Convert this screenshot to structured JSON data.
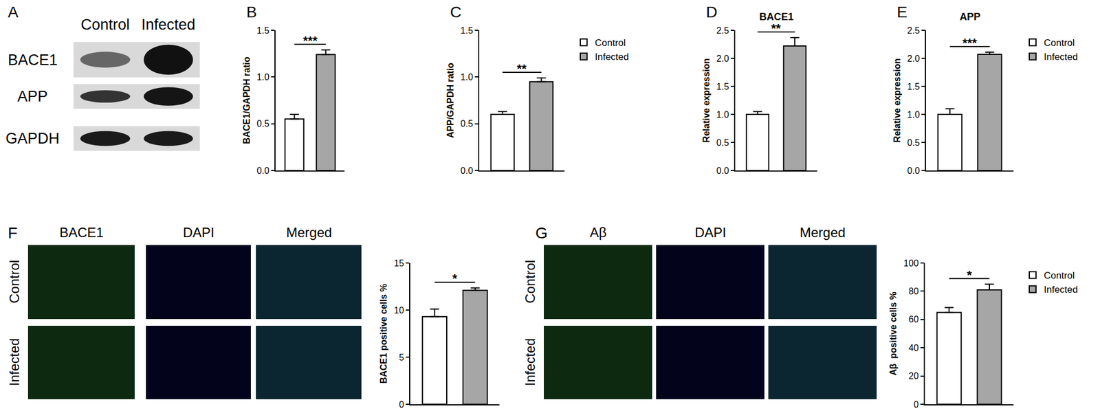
{
  "chart_data": [
    {
      "type": "bar",
      "panel": "B",
      "ylabel": "BACE1/GAPDH ratio",
      "categories": [
        null,
        null
      ],
      "series": [
        {
          "name": "Control",
          "color": "#ffffff",
          "values": [
            0.55,
            null
          ],
          "error": [
            0.05,
            null
          ]
        },
        {
          "name": "Infected",
          "color": "#a6a6a6",
          "values": [
            null,
            1.24
          ],
          "error": [
            null,
            0.05
          ]
        }
      ],
      "ylim": [
        0,
        1.5
      ],
      "yticks": [
        {
          "value": 0,
          "label": "0.0"
        },
        {
          "value": 0.5,
          "label": "0.5"
        },
        {
          "value": 1,
          "label": "1.0"
        },
        {
          "value": 1.5,
          "label": "1.5"
        }
      ],
      "significance": "***",
      "grid": false,
      "tick_labels": "y"
    },
    {
      "type": "bar",
      "panel": "C",
      "ylabel": "APP/GAPDH ratio",
      "categories": [
        null,
        null
      ],
      "series": [
        {
          "name": "Control",
          "color": "#ffffff",
          "values": [
            0.6,
            null
          ],
          "error": [
            0.03,
            null
          ]
        },
        {
          "name": "Infected",
          "color": "#a6a6a6",
          "values": [
            null,
            0.95
          ],
          "error": [
            null,
            0.04
          ]
        }
      ],
      "ylim": [
        0,
        1.5
      ],
      "yticks": [
        {
          "value": 0,
          "label": "0.0"
        },
        {
          "value": 0.5,
          "label": "0.5"
        },
        {
          "value": 1,
          "label": "1.0"
        },
        {
          "value": 1.5,
          "label": "1.5"
        }
      ],
      "significance": "**",
      "grid": false,
      "tick_labels": "y",
      "legend": "upper right"
    },
    {
      "type": "bar",
      "panel": "D",
      "title": "BACE1",
      "ylabel": "Relative expression",
      "categories": [
        null,
        null
      ],
      "series": [
        {
          "name": "Control",
          "color": "#ffffff",
          "values": [
            1.0,
            null
          ],
          "error": [
            0.05,
            null
          ]
        },
        {
          "name": "Infected",
          "color": "#a6a6a6",
          "values": [
            null,
            2.22
          ],
          "error": [
            null,
            0.15
          ]
        }
      ],
      "ylim": [
        0,
        2.5
      ],
      "yticks": [
        {
          "value": 0,
          "label": "0.0"
        },
        {
          "value": 0.5,
          "label": "0.5"
        },
        {
          "value": 1,
          "label": "1.0"
        },
        {
          "value": 1.5,
          "label": "1.5"
        },
        {
          "value": 2,
          "label": "2.0"
        },
        {
          "value": 2.5,
          "label": "2.5"
        }
      ],
      "significance": "**",
      "grid": false,
      "tick_labels": "y"
    },
    {
      "type": "bar",
      "panel": "E",
      "title": "APP",
      "ylabel": "Relative expression",
      "categories": [
        null,
        null
      ],
      "series": [
        {
          "name": "Control",
          "color": "#ffffff",
          "values": [
            1.0,
            null
          ],
          "error": [
            0.1,
            null
          ]
        },
        {
          "name": "Infected",
          "color": "#a6a6a6",
          "values": [
            null,
            2.07
          ],
          "error": [
            null,
            0.04
          ]
        }
      ],
      "ylim": [
        0,
        2.5
      ],
      "yticks": [
        {
          "value": 0,
          "label": "0.0"
        },
        {
          "value": 0.5,
          "label": "0.5"
        },
        {
          "value": 1,
          "label": "1.0"
        },
        {
          "value": 1.5,
          "label": "1.5"
        },
        {
          "value": 2,
          "label": "2.0"
        },
        {
          "value": 2.5,
          "label": "2.5"
        }
      ],
      "significance": "***",
      "grid": false,
      "tick_labels": "y",
      "legend": "upper right"
    },
    {
      "type": "bar",
      "ylabel": "BACE1 positive cells %",
      "categories": [
        null,
        null
      ],
      "series": [
        {
          "name": "Control",
          "color": "#ffffff",
          "values": [
            9.3,
            null
          ],
          "error": [
            0.8,
            null
          ]
        },
        {
          "name": "Infected",
          "color": "#a6a6a6",
          "values": [
            null,
            12.1
          ],
          "error": [
            null,
            0.25
          ]
        }
      ],
      "ylim": [
        0,
        15
      ],
      "yticks": [
        0,
        5,
        10,
        15
      ],
      "significance": "*",
      "grid": false,
      "tick_labels": "y"
    },
    {
      "type": "bar",
      "ylabel": "Aβ  positive cells %",
      "categories": [
        null,
        null
      ],
      "series": [
        {
          "name": "Control",
          "color": "#ffffff",
          "values": [
            65,
            null
          ],
          "error": [
            3.5,
            null
          ]
        },
        {
          "name": "Infected",
          "color": "#a6a6a6",
          "values": [
            null,
            81
          ],
          "error": [
            null,
            4
          ]
        }
      ],
      "ylim": [
        0,
        100
      ],
      "yticks": [
        0,
        20,
        40,
        60,
        80,
        100
      ],
      "significance": "*",
      "grid": false,
      "tick_labels": "y",
      "legend": "upper right"
    }
  ],
  "blot": {
    "panel": "A",
    "columns": [
      "Control",
      "Infected"
    ],
    "rows": [
      "BACE1",
      "APP",
      "GAPDH"
    ]
  },
  "images": [
    {
      "panel": "F",
      "columns": [
        "BACE1",
        "DAPI",
        "Merged"
      ],
      "rows": [
        "Control",
        "Infected"
      ]
    },
    {
      "panel": "G",
      "columns": [
        "Aβ",
        "DAPI",
        "Merged"
      ],
      "rows": [
        "Control",
        "Infected"
      ]
    }
  ]
}
